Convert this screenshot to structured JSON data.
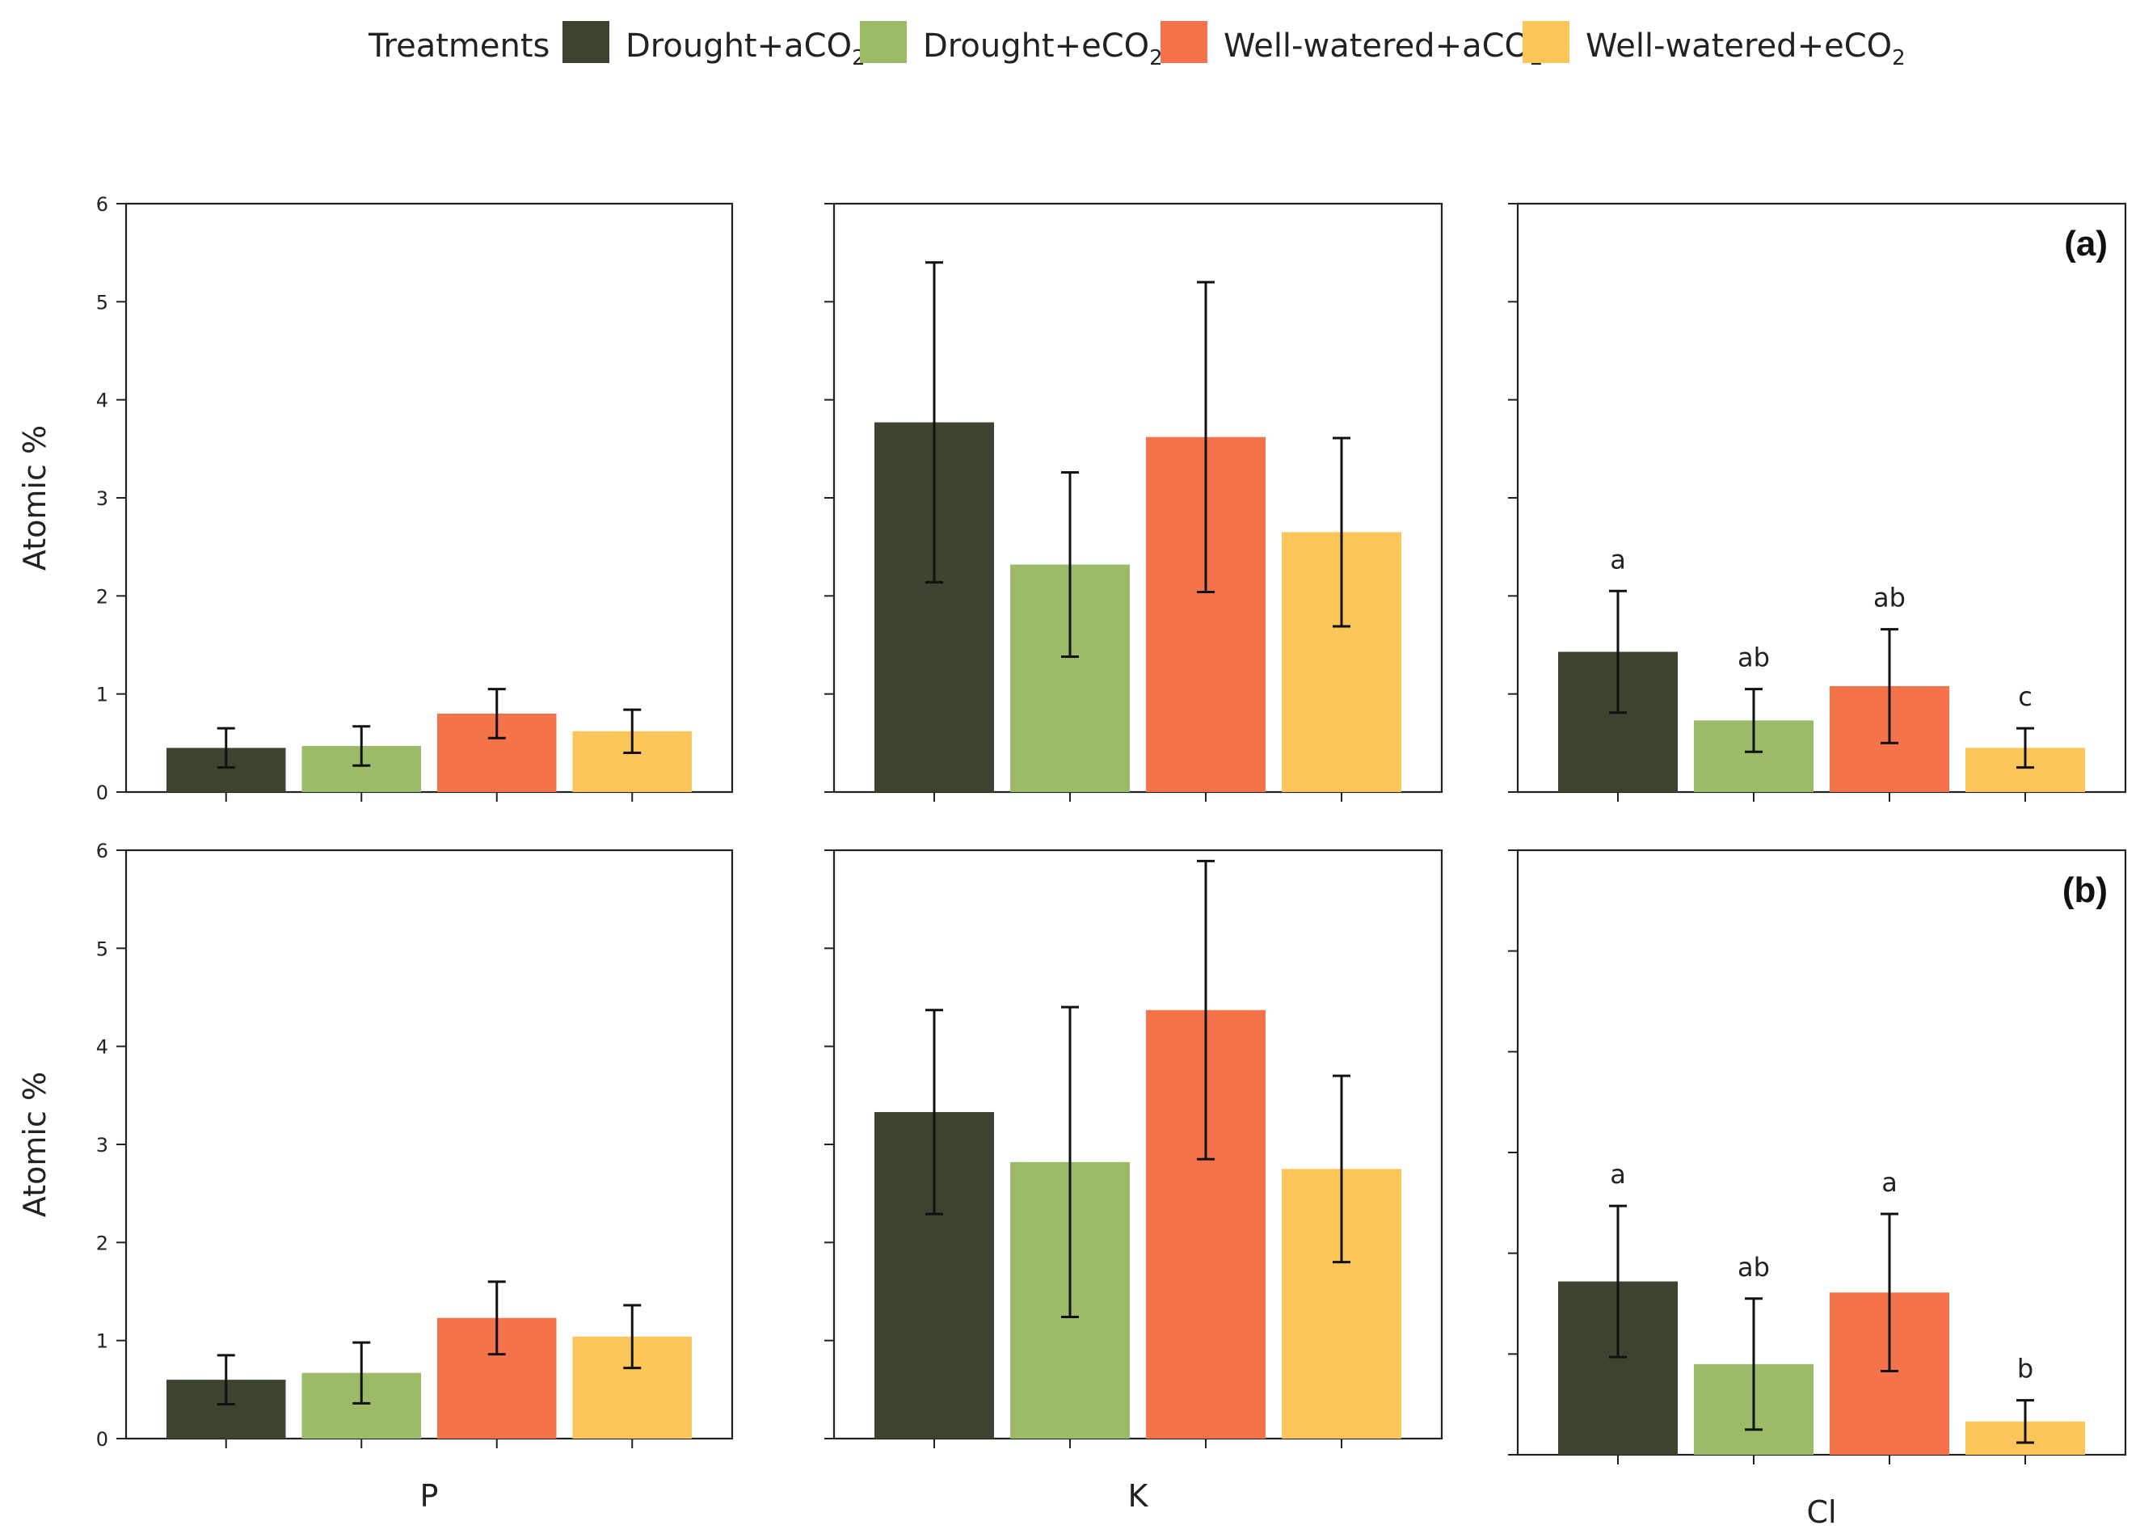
{
  "legend": {
    "title": "Treatments",
    "entries": [
      {
        "main": "Drought+aCO",
        "sub": "2",
        "color": "#3c4430"
      },
      {
        "main": "Drought+eCO",
        "sub": "2",
        "color": "#9bbb68"
      },
      {
        "main": "Well-watered+aCO",
        "sub": "2",
        "color": "#f5734b"
      },
      {
        "main": "Well-watered+eCO",
        "sub": "2",
        "color": "#fcc55a"
      }
    ]
  },
  "chart_data": [
    {
      "type": "bar",
      "row": "(a)",
      "element": "P",
      "ylabel": "Atomic %",
      "ylim": [
        0,
        6
      ],
      "yticks": [
        "0",
        "1",
        "2",
        "3",
        "4",
        "5",
        "6"
      ],
      "values": [
        0.45,
        0.47,
        0.8,
        0.62
      ],
      "errors": [
        0.2,
        0.2,
        0.25,
        0.22
      ],
      "letters": [
        "",
        "",
        "",
        ""
      ]
    },
    {
      "type": "bar",
      "row": "(a)",
      "element": "K",
      "ylim": [
        0,
        6
      ],
      "values": [
        3.77,
        2.32,
        3.62,
        2.65
      ],
      "errors": [
        1.63,
        0.94,
        1.58,
        0.96
      ],
      "letters": [
        "",
        "",
        "",
        ""
      ]
    },
    {
      "type": "bar",
      "row": "(a)",
      "element": "Cl",
      "ylim": [
        0,
        6
      ],
      "panel_label": "(a)",
      "values": [
        1.43,
        0.73,
        1.08,
        0.45
      ],
      "errors": [
        0.62,
        0.32,
        0.58,
        0.2
      ],
      "letters": [
        "a",
        "ab",
        "ab",
        "c"
      ]
    },
    {
      "type": "bar",
      "row": "(b)",
      "element": "P",
      "ylabel": "Atomic %",
      "ylim": [
        0,
        6
      ],
      "yticks": [
        "0",
        "1",
        "2",
        "3",
        "4",
        "5",
        "6"
      ],
      "xlabel": "P",
      "values": [
        0.6,
        0.67,
        1.23,
        1.04
      ],
      "errors": [
        0.25,
        0.31,
        0.37,
        0.32
      ],
      "letters": [
        "",
        "",
        "",
        ""
      ]
    },
    {
      "type": "bar",
      "row": "(b)",
      "element": "K",
      "ylim": [
        0,
        6
      ],
      "xlabel": "K",
      "values": [
        3.33,
        2.82,
        4.37,
        2.75
      ],
      "errors": [
        1.04,
        1.58,
        1.52,
        0.95
      ],
      "letters": [
        "",
        "",
        "",
        ""
      ]
    },
    {
      "type": "bar",
      "row": "(b)",
      "element": "Cl",
      "ylim": [
        0,
        6
      ],
      "xlabel": "Cl",
      "panel_label": "(b)",
      "values": [
        1.72,
        0.9,
        1.61,
        0.33
      ],
      "errors": [
        0.75,
        0.65,
        0.78,
        0.21
      ],
      "letters": [
        "a",
        "ab",
        "a",
        "b"
      ]
    }
  ]
}
